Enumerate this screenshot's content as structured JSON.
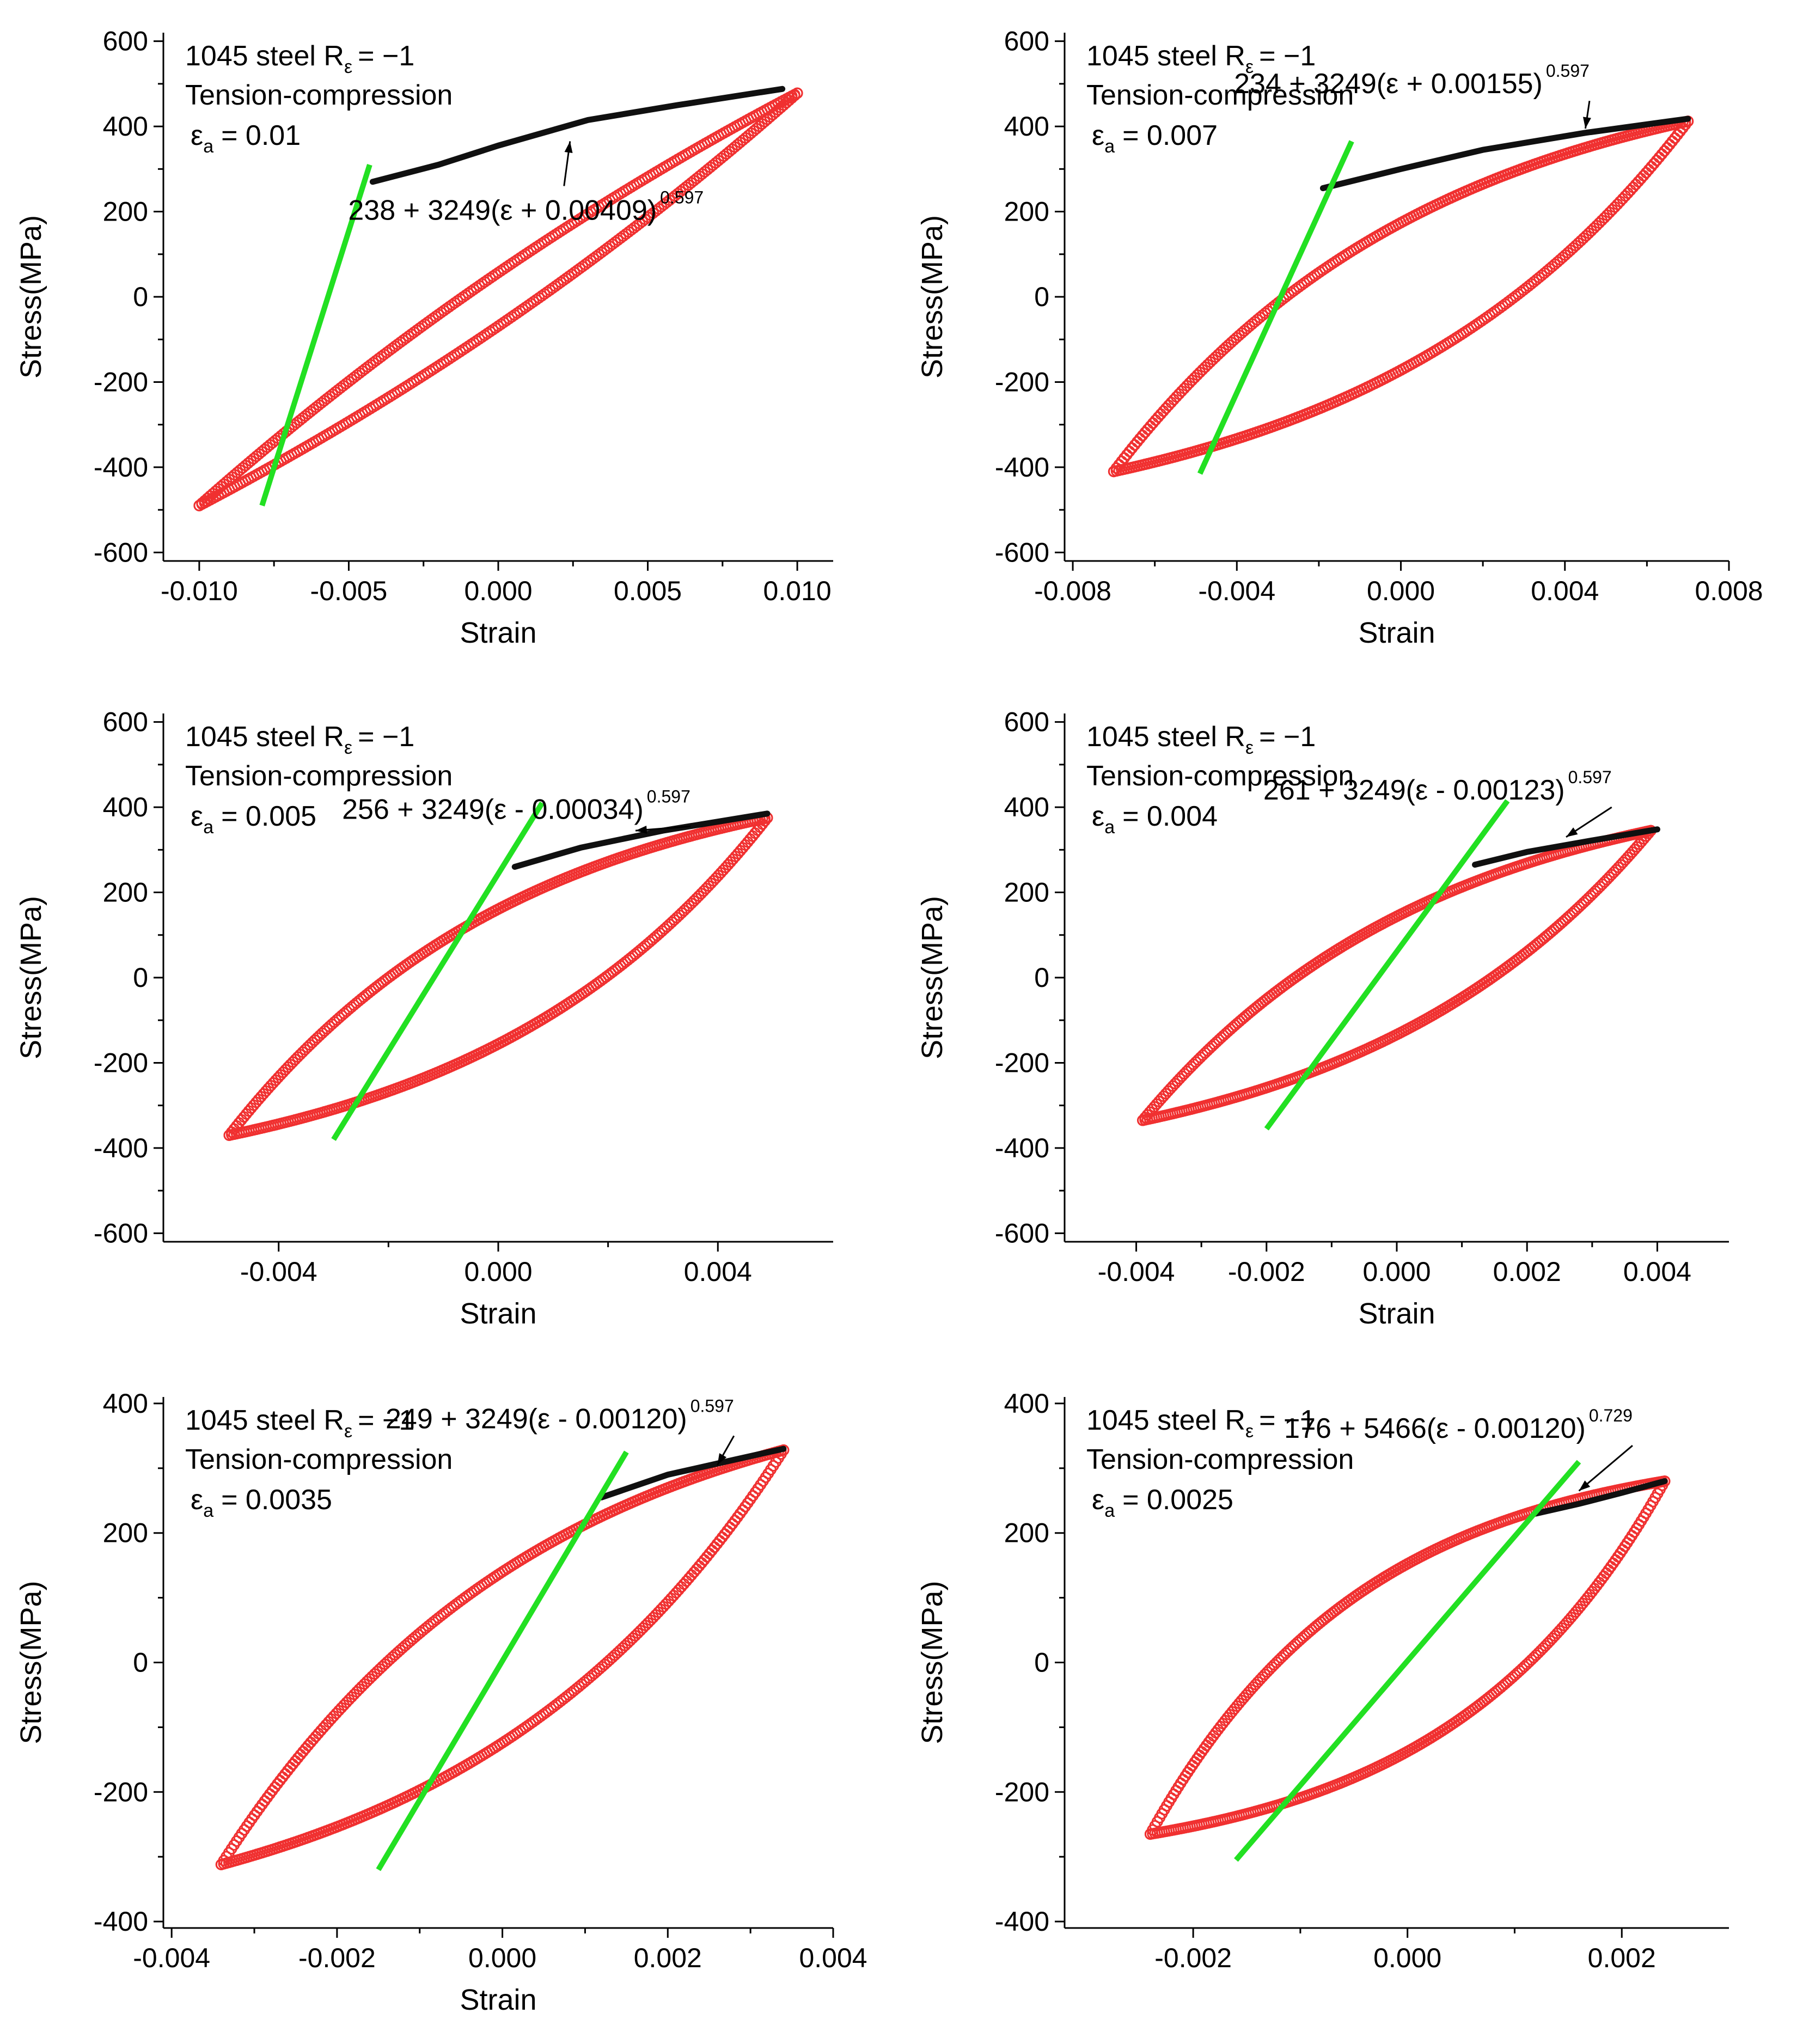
{
  "figure": {
    "background": "#ffffff",
    "colors": {
      "loop": "#f03030",
      "fit": "#101010",
      "elastic": "#22e022",
      "axis": "#000000"
    }
  },
  "chart_data": [
    {
      "type": "scatter",
      "material": "1045 steel R",
      "ratio_sub": "ε",
      "ratio_val": "= −1",
      "mode": "Tension-compression",
      "amp_sym": "ε",
      "amp_sub": "a",
      "amp_val": "= 0.01",
      "equation": "238 + 3249(ε + 0.00409)",
      "exponent": "0.597",
      "xlabel": "Strain",
      "ylabel": "Stress(MPa)",
      "xlim": [
        -0.0112,
        0.0112
      ],
      "ylim": [
        -620,
        620
      ],
      "xticks": [
        -0.01,
        -0.005,
        0.0,
        0.005,
        0.01
      ],
      "xtick_labels": [
        "-0.010",
        "-0.005",
        "0.000",
        "0.005",
        "0.010"
      ],
      "yticks": [
        -600,
        -400,
        -200,
        0,
        200,
        400,
        600
      ],
      "ytick_labels": [
        "-600",
        "-400",
        "-200",
        "0",
        "200",
        "400",
        "600"
      ],
      "loop": {
        "amp": 0.01,
        "smax": 478,
        "smin": -490,
        "spread": 0.0205,
        "bend": 0.87,
        "lower": [
          [
            -0.007,
            -470
          ],
          [
            -0.003,
            -420
          ],
          [
            0.0,
            -370
          ],
          [
            0.003,
            -290
          ],
          [
            0.006,
            -160
          ],
          [
            0.008,
            -40
          ],
          [
            0.009,
            100
          ]
        ],
        "upper": [
          [
            0.007,
            450
          ],
          [
            0.003,
            410
          ],
          [
            0.0,
            360
          ],
          [
            -0.003,
            290
          ],
          [
            -0.005,
            200
          ],
          [
            -0.007,
            40
          ],
          [
            -0.008,
            -120
          ],
          [
            -0.009,
            -310
          ]
        ]
      },
      "fit_range": [
        -0.0042,
        0.01
      ],
      "fit_points": [
        [
          -0.0042,
          270
        ],
        [
          -0.002,
          310
        ],
        [
          0.0,
          355
        ],
        [
          0.003,
          415
        ],
        [
          0.006,
          450
        ],
        [
          0.0095,
          488
        ]
      ],
      "elastic_line": {
        "start": [
          -0.0079,
          -490
        ],
        "end": [
          -0.0043,
          310
        ]
      },
      "equation_arrow": {
        "from": [
          0.0022,
          260
        ],
        "to": [
          0.0024,
          365
        ]
      }
    },
    {
      "type": "scatter",
      "material": "1045 steel R",
      "ratio_sub": "ε",
      "ratio_val": "= −1",
      "mode": "Tension-compression",
      "amp_sym": "ε",
      "amp_sub": "a",
      "amp_val": "= 0.007",
      "equation": "234 + 3249(ε + 0.00155)",
      "exponent": "0.597",
      "xlabel": "Strain",
      "ylabel": "Stress(MPa)",
      "xlim": [
        -0.0082,
        0.008
      ],
      "ylim": [
        -620,
        620
      ],
      "xticks": [
        -0.008,
        -0.004,
        0.0,
        0.004,
        0.008
      ],
      "xtick_labels": [
        "-0.008",
        "-0.004",
        "0.000",
        "0.004",
        "0.008"
      ],
      "yticks": [
        -600,
        -400,
        -200,
        0,
        200,
        400,
        600
      ],
      "ytick_labels": [
        "-600",
        "-400",
        "-200",
        "0",
        "200",
        "400",
        "600"
      ],
      "loop": {
        "amp": 0.007,
        "smax": 412,
        "smin": -410,
        "spread": 0.0052,
        "bend": 0.5
      },
      "fit_range": [
        -0.0019,
        0.007
      ],
      "fit_points": [
        [
          -0.0019,
          255
        ],
        [
          0.0,
          300
        ],
        [
          0.002,
          345
        ],
        [
          0.0045,
          385
        ],
        [
          0.007,
          418
        ]
      ],
      "elastic_line": {
        "start": [
          -0.0049,
          -415
        ],
        "end": [
          -0.0012,
          365
        ]
      },
      "equation_arrow": {
        "from": [
          0.0046,
          460
        ],
        "to": [
          0.0045,
          395
        ]
      }
    },
    {
      "type": "scatter",
      "material": "1045 steel R",
      "ratio_sub": "ε",
      "ratio_val": "= −1",
      "mode": "Tension-compression",
      "amp_sym": "ε",
      "amp_sub": "a",
      "amp_val": "= 0.005",
      "equation": "256 + 3249(ε - 0.00034)",
      "exponent": "0.597",
      "xlabel": "Strain",
      "ylabel": "Stress(MPa)",
      "xlim": [
        -0.0061,
        0.0061
      ],
      "ylim": [
        -620,
        620
      ],
      "xticks": [
        -0.004,
        0.0,
        0.004
      ],
      "xtick_labels": [
        "-0.004",
        "0.000",
        "0.004"
      ],
      "yticks": [
        -600,
        -400,
        -200,
        0,
        200,
        400,
        600
      ],
      "ytick_labels": [
        "-600",
        "-400",
        "-200",
        "0",
        "200",
        "400",
        "600"
      ],
      "loop": {
        "amp": 0.0049,
        "smax": 375,
        "smin": -370,
        "spread": 0.0036,
        "bend": 0.5
      },
      "fit_range": [
        0.0003,
        0.0049
      ],
      "fit_points": [
        [
          0.0003,
          260
        ],
        [
          0.0015,
          305
        ],
        [
          0.003,
          345
        ],
        [
          0.0049,
          385
        ]
      ],
      "elastic_line": {
        "start": [
          -0.003,
          -380
        ],
        "end": [
          0.0008,
          410
        ]
      },
      "equation_arrow": {
        "from": [
          0.0035,
          355
        ],
        "to": [
          0.0025,
          345
        ]
      }
    },
    {
      "type": "scatter",
      "material": "1045 steel R",
      "ratio_sub": "ε",
      "ratio_val": "= −1",
      "mode": "Tension-compression",
      "amp_sym": "ε",
      "amp_sub": "a",
      "amp_val": "= 0.004",
      "equation": "261 + 3249(ε - 0.00123)",
      "exponent": "0.597",
      "xlabel": "Strain",
      "ylabel": "Stress(MPa)",
      "xlim": [
        -0.0051,
        0.0051
      ],
      "ylim": [
        -620,
        620
      ],
      "xticks": [
        -0.004,
        -0.002,
        0.0,
        0.002,
        0.004
      ],
      "xtick_labels": [
        "-0.004",
        "-0.002",
        "0.000",
        "0.002",
        "0.004"
      ],
      "yticks": [
        -600,
        -400,
        -200,
        0,
        200,
        400,
        600
      ],
      "ytick_labels": [
        "-600",
        "-400",
        "-200",
        "0",
        "200",
        "400",
        "600"
      ],
      "loop": {
        "amp": 0.0039,
        "smax": 345,
        "smin": -335,
        "spread": 0.003,
        "bend": 0.5
      },
      "fit_range": [
        0.0012,
        0.004
      ],
      "fit_points": [
        [
          0.0012,
          265
        ],
        [
          0.002,
          295
        ],
        [
          0.003,
          322
        ],
        [
          0.004,
          348
        ]
      ],
      "elastic_line": {
        "start": [
          -0.002,
          -355
        ],
        "end": [
          0.0017,
          415
        ]
      },
      "equation_arrow": {
        "from": [
          0.0033,
          400
        ],
        "to": [
          0.0026,
          330
        ]
      }
    },
    {
      "type": "scatter",
      "material": "1045 steel R",
      "ratio_sub": "ε",
      "ratio_val": "= −1",
      "mode": "Tension-compression",
      "amp_sym": "ε",
      "amp_sub": "a",
      "amp_val": "= 0.0035",
      "equation": "249 + 3249(ε - 0.00120)",
      "exponent": "0.597",
      "xlabel": "Strain",
      "ylabel": "Stress(MPa)",
      "xlim": [
        -0.0041,
        0.004
      ],
      "ylim": [
        -410,
        410
      ],
      "xticks": [
        -0.004,
        -0.002,
        0.0,
        0.002,
        0.004
      ],
      "xtick_labels": [
        "-0.004",
        "-0.002",
        "0.000",
        "0.002",
        "0.004"
      ],
      "yticks": [
        -400,
        -200,
        0,
        200,
        400
      ],
      "ytick_labels": [
        "-400",
        "-200",
        "0",
        "200",
        "400"
      ],
      "loop": {
        "amp": 0.0034,
        "smax": 328,
        "smin": -312,
        "spread": 0.0025,
        "bend": 0.55
      },
      "fit_range": [
        0.0012,
        0.0034
      ],
      "fit_points": [
        [
          0.0012,
          255
        ],
        [
          0.002,
          290
        ],
        [
          0.0028,
          313
        ],
        [
          0.0034,
          330
        ]
      ],
      "elastic_line": {
        "start": [
          -0.0015,
          -320
        ],
        "end": [
          0.0015,
          325
        ]
      },
      "equation_arrow": {
        "from": [
          0.0028,
          350
        ],
        "to": [
          0.0026,
          305
        ]
      }
    },
    {
      "type": "scatter",
      "material": "1045 steel R",
      "ratio_sub": "ε",
      "ratio_val": "= −1",
      "mode": "Tension-compression",
      "amp_sym": "ε",
      "amp_sub": "a",
      "amp_val": "= 0.0025",
      "equation": "176 + 5466(ε - 0.00120)",
      "exponent": "0.729",
      "xlabel": "",
      "ylabel": "Stress(MPa)",
      "xlim": [
        -0.0032,
        0.003
      ],
      "ylim": [
        -410,
        410
      ],
      "xticks": [
        -0.002,
        0.0,
        0.002
      ],
      "xtick_labels": [
        "-0.002",
        "0.000",
        "0.002"
      ],
      "yticks": [
        -400,
        -200,
        0,
        200,
        400
      ],
      "ytick_labels": [
        "-400",
        "-200",
        "0",
        "200",
        "400"
      ],
      "loop": {
        "amp": 0.0024,
        "smax": 280,
        "smin": -265,
        "spread": 0.0015,
        "bend": 0.35
      },
      "fit_range": [
        0.0012,
        0.0024
      ],
      "fit_points": [
        [
          0.0012,
          230
        ],
        [
          0.0016,
          245
        ],
        [
          0.002,
          262
        ],
        [
          0.0024,
          280
        ]
      ],
      "elastic_line": {
        "start": [
          -0.0016,
          -305
        ],
        "end": [
          0.0016,
          310
        ]
      },
      "equation_arrow": {
        "from": [
          0.0021,
          335
        ],
        "to": [
          0.0016,
          265
        ]
      }
    }
  ]
}
